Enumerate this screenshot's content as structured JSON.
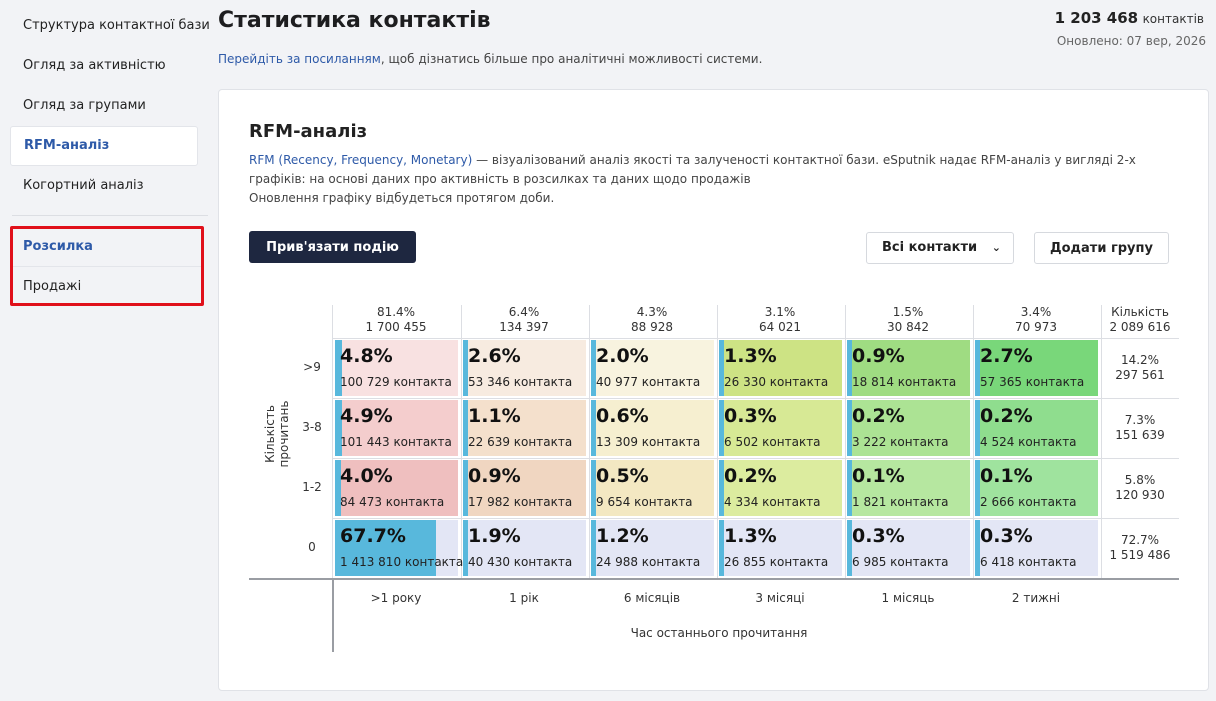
{
  "sidebar": {
    "items": [
      {
        "label": "Структура контактної бази"
      },
      {
        "label": "Огляд за активністю"
      },
      {
        "label": "Огляд за групами"
      },
      {
        "label": "RFM-аналіз"
      },
      {
        "label": "Когортний аналіз"
      }
    ],
    "sub_items": [
      {
        "label": "Розсилка"
      },
      {
        "label": "Продажі"
      }
    ]
  },
  "header": {
    "title": "Статистика контактів",
    "link_text": "Перейдіть за посиланням",
    "link_suffix": ", щоб дізнатись більше про аналітичні можливості системи.",
    "total_value": "1 203 468",
    "total_unit": "контактів",
    "updated": "Оновлено: 07 вер, 2026"
  },
  "card": {
    "title": "RFM-аналіз",
    "desc_link": "RFM (Recency, Frequency, Monetary)",
    "desc_line1": " — візуалізований аналіз якості та залученості контактної бази. eSputnik надає RFM-аналіз у вигляді 2-х графіків: на основі даних про активність в розсилках та даних щодо продажів",
    "desc_line2": "Оновлення графіку відбудеться протягом доби.",
    "bind_event_button": "Прив'язати подію",
    "contacts_select": "Всі контакти",
    "add_group_button": "Додати групу"
  },
  "chart_data": {
    "type": "heatmap",
    "ylabel": "Кількість прочитань",
    "xlabel": "Час останнього прочитання",
    "x_categories": [
      ">1 року",
      "1 рік",
      "6 місяців",
      "3 місяці",
      "1 місяць",
      "2 тижні"
    ],
    "y_categories": [
      ">9",
      "3-8",
      "1-2",
      "0"
    ],
    "column_totals": [
      {
        "pct": "81.4%",
        "count": "1 700 455"
      },
      {
        "pct": "6.4%",
        "count": "134 397"
      },
      {
        "pct": "4.3%",
        "count": "88 928"
      },
      {
        "pct": "3.1%",
        "count": "64 021"
      },
      {
        "pct": "1.5%",
        "count": "30 842"
      },
      {
        "pct": "3.4%",
        "count": "70 973"
      }
    ],
    "quantity_header": {
      "label": "Кількість",
      "count": "2 089 616"
    },
    "row_totals": [
      {
        "pct": "14.2%",
        "count": "297 561"
      },
      {
        "pct": "7.3%",
        "count": "151 639"
      },
      {
        "pct": "5.8%",
        "count": "120 930"
      },
      {
        "pct": "72.7%",
        "count": "1 519 486"
      }
    ],
    "cells": [
      [
        {
          "pct": "4.8%",
          "value": 4.8,
          "count": "100 729 контакта",
          "color": "#f8e1e1"
        },
        {
          "pct": "2.6%",
          "value": 2.6,
          "count": "53 346 контакта",
          "color": "#f7ebe0"
        },
        {
          "pct": "2.0%",
          "value": 2.0,
          "count": "40 977 контакта",
          "color": "#f8f3df"
        },
        {
          "pct": "1.3%",
          "value": 1.3,
          "count": "26 330 контакта",
          "color": "#cde384"
        },
        {
          "pct": "0.9%",
          "value": 0.9,
          "count": "18 814 контакта",
          "color": "#9fdc82"
        },
        {
          "pct": "2.7%",
          "value": 2.7,
          "count": "57 365 контакта",
          "color": "#79d77a"
        }
      ],
      [
        {
          "pct": "4.9%",
          "value": 4.9,
          "count": "101 443 контакта",
          "color": "#f4cdcd"
        },
        {
          "pct": "1.1%",
          "value": 1.1,
          "count": "22 639 контакта",
          "color": "#f4e0cc"
        },
        {
          "pct": "0.6%",
          "value": 0.6,
          "count": "13 309 контакта",
          "color": "#f6efd0"
        },
        {
          "pct": "0.3%",
          "value": 0.3,
          "count": "6 502 контакта",
          "color": "#d7e995"
        },
        {
          "pct": "0.2%",
          "value": 0.2,
          "count": "3 222 контакта",
          "color": "#ace394"
        },
        {
          "pct": "0.2%",
          "value": 0.2,
          "count": "4 524 контакта",
          "color": "#8fdd8e"
        }
      ],
      [
        {
          "pct": "4.0%",
          "value": 4.0,
          "count": "84 473 контакта",
          "color": "#efbfbf"
        },
        {
          "pct": "0.9%",
          "value": 0.9,
          "count": "17 982 контакта",
          "color": "#f0d6c1"
        },
        {
          "pct": "0.5%",
          "value": 0.5,
          "count": "9 654 контакта",
          "color": "#f3e8c2"
        },
        {
          "pct": "0.2%",
          "value": 0.2,
          "count": "4 334 контакта",
          "color": "#dcec9f"
        },
        {
          "pct": "0.1%",
          "value": 0.1,
          "count": "1 821 контакта",
          "color": "#b6e7a0"
        },
        {
          "pct": "0.1%",
          "value": 0.1,
          "count": "2 666 контакта",
          "color": "#9fe39e"
        }
      ],
      [
        {
          "pct": "67.7%",
          "value": 67.7,
          "count": "1 413 810 контакта",
          "color": "#e3e6f5"
        },
        {
          "pct": "1.9%",
          "value": 1.9,
          "count": "40 430 контакта",
          "color": "#e3e6f5"
        },
        {
          "pct": "1.2%",
          "value": 1.2,
          "count": "24 988 контакта",
          "color": "#e3e6f5"
        },
        {
          "pct": "1.3%",
          "value": 1.3,
          "count": "26 855 контакта",
          "color": "#e3e6f5"
        },
        {
          "pct": "0.3%",
          "value": 0.3,
          "count": "6 985 контакта",
          "color": "#e3e6f5"
        },
        {
          "pct": "0.3%",
          "value": 0.3,
          "count": "6 418 контакта",
          "color": "#e3e6f5"
        }
      ]
    ],
    "bar_color": "#58b8dc"
  }
}
